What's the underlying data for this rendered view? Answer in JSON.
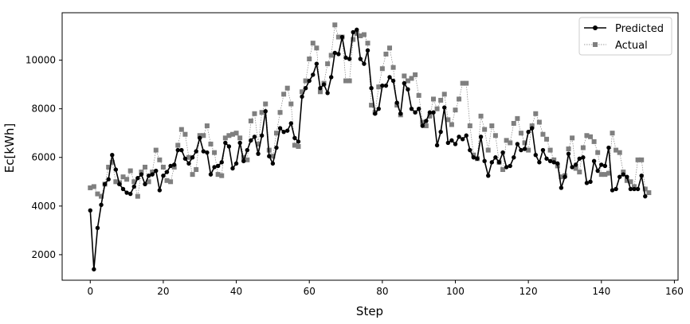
{
  "chart_data": {
    "type": "line",
    "xlabel": "Step",
    "ylabel": "Ec[kWh]",
    "xlim": [
      -7.7,
      161
    ],
    "ylim": [
      950,
      11950
    ],
    "xticks": [
      0,
      20,
      40,
      60,
      80,
      100,
      120,
      140,
      160
    ],
    "yticks": [
      2000,
      4000,
      6000,
      8000,
      10000
    ],
    "grid": false,
    "legend_position": "top-right",
    "series": [
      {
        "name": "Predicted",
        "color": "#000000",
        "marker": "circle",
        "line": "solid",
        "values": [
          3820,
          1400,
          3100,
          4050,
          4900,
          5100,
          6100,
          5500,
          4900,
          4700,
          4550,
          4500,
          4800,
          5150,
          5300,
          4900,
          5250,
          5300,
          5450,
          4650,
          5250,
          5400,
          5650,
          5700,
          6300,
          6300,
          5950,
          5750,
          6000,
          6250,
          6800,
          6250,
          6200,
          5300,
          5600,
          5650,
          5800,
          6600,
          6450,
          5550,
          5750,
          6600,
          5850,
          6300,
          6700,
          6850,
          6150,
          6900,
          7900,
          6050,
          5750,
          6400,
          7200,
          7050,
          7100,
          7400,
          6800,
          6650,
          8500,
          8850,
          9150,
          9400,
          9850,
          8850,
          9000,
          8650,
          9300,
          10300,
          10250,
          10950,
          10100,
          10050,
          11150,
          11250,
          10050,
          9850,
          10400,
          8850,
          7800,
          8000,
          8950,
          8950,
          9300,
          9150,
          8250,
          7800,
          9050,
          8800,
          8000,
          7850,
          8000,
          7300,
          7500,
          7850,
          7850,
          6500,
          7050,
          8050,
          6600,
          6700,
          6550,
          6850,
          6750,
          6900,
          6300,
          6000,
          5950,
          6850,
          5850,
          5250,
          5800,
          6000,
          5800,
          6200,
          5600,
          5650,
          6000,
          6550,
          6300,
          6350,
          7050,
          7200,
          6100,
          5800,
          6300,
          5950,
          5850,
          5800,
          5750,
          4750,
          5200,
          6150,
          5600,
          5700,
          5950,
          6000,
          4950,
          5000,
          5850,
          5450,
          5700,
          5650,
          6400,
          4650,
          4700,
          5200,
          5300,
          5200,
          4700,
          4700,
          4700,
          5250,
          4400
        ]
      },
      {
        "name": "Actual",
        "color": "#7f7f7f",
        "marker": "square",
        "line": "dotted",
        "values": [
          4750,
          4800,
          4500,
          4400,
          4900,
          5600,
          5800,
          5000,
          4950,
          5200,
          5100,
          5450,
          5000,
          4400,
          5400,
          5600,
          5000,
          5400,
          6300,
          5900,
          5600,
          5050,
          5000,
          5600,
          6500,
          7150,
          6950,
          6000,
          5300,
          5500,
          6900,
          6900,
          7300,
          6550,
          6200,
          5300,
          5250,
          6800,
          6900,
          6950,
          7000,
          6800,
          6000,
          5900,
          7500,
          7800,
          6550,
          7850,
          8200,
          6300,
          6050,
          7000,
          7850,
          8600,
          8850,
          8200,
          6500,
          6450,
          8700,
          9150,
          10050,
          10700,
          10500,
          8700,
          9050,
          9850,
          10200,
          11450,
          10950,
          10950,
          9150,
          9150,
          10850,
          11100,
          11000,
          11050,
          10700,
          8150,
          7850,
          8900,
          9650,
          10250,
          10500,
          9700,
          8150,
          7750,
          9350,
          9150,
          9250,
          9400,
          8550,
          7450,
          7300,
          7700,
          8400,
          8000,
          8350,
          8600,
          7550,
          7350,
          7950,
          8400,
          9050,
          9050,
          7300,
          6100,
          5950,
          7700,
          7150,
          6300,
          7300,
          6900,
          5800,
          5500,
          6700,
          6600,
          7400,
          7600,
          7000,
          6600,
          6300,
          7300,
          7800,
          7450,
          6950,
          6750,
          6300,
          5900,
          5650,
          5200,
          5250,
          6350,
          6800,
          5550,
          5400,
          6400,
          6900,
          6850,
          6650,
          6200,
          5300,
          5300,
          5350,
          7000,
          6300,
          6200,
          5400,
          5050,
          5000,
          4800,
          5900,
          5900,
          4700,
          4550
        ]
      }
    ]
  }
}
